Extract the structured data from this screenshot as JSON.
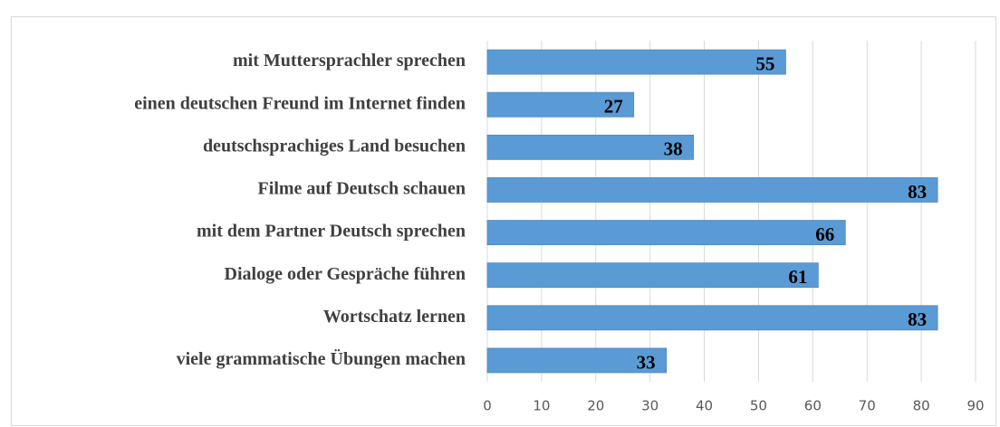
{
  "chart_data": {
    "type": "bar",
    "orientation": "horizontal",
    "categories": [
      "mit Muttersprachler sprechen",
      "einen deutschen Freund im Internet finden",
      "deutschsprachiges Land besuchen",
      "Filme auf Deutsch schauen",
      "mit dem Partner Deutsch sprechen",
      "Dialoge oder Gespräche führen",
      "Wortschatz  lernen",
      "viele grammatische Übungen machen"
    ],
    "values": [
      55,
      27,
      38,
      83,
      66,
      61,
      83,
      33
    ],
    "color": "#5b9bd5",
    "xlim": [
      0,
      90
    ],
    "xticks": [
      0,
      10,
      20,
      30,
      40,
      50,
      60,
      70,
      80,
      90
    ],
    "grid": true
  }
}
